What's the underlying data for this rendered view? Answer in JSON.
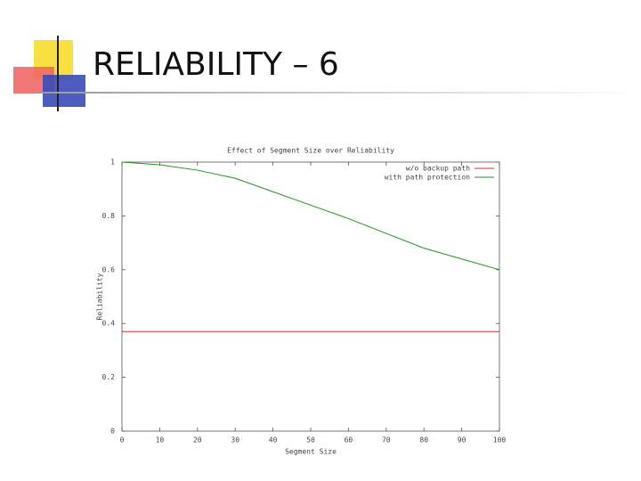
{
  "slide_title": "RELIABILITY – 6",
  "chart_data": {
    "type": "line",
    "title": "Effect of Segment Size over Reliability",
    "x_label": "Segment Size",
    "y_label": "Reliability",
    "x": [
      0,
      10,
      20,
      30,
      40,
      50,
      60,
      70,
      80,
      90,
      100
    ],
    "series": [
      {
        "name": "w/o backup path",
        "color": "#e03030",
        "values": [
          0.37,
          0.37,
          0.37,
          0.37,
          0.37,
          0.37,
          0.37,
          0.37,
          0.37,
          0.37,
          0.37
        ]
      },
      {
        "name": "with path protection",
        "color": "#1a9a1a",
        "values": [
          1,
          0.99,
          0.97,
          0.94,
          0.89,
          0.84,
          0.79,
          0.735,
          0.68,
          0.64,
          0.6
        ]
      }
    ],
    "xlim": [
      0,
      100
    ],
    "xticks": [
      0,
      10,
      20,
      30,
      40,
      50,
      60,
      70,
      80,
      90,
      100
    ],
    "ylim": [
      0,
      1
    ],
    "yticks": [
      0,
      0.2,
      0.4,
      0.6,
      0.8,
      1
    ],
    "legend": "top-right"
  }
}
